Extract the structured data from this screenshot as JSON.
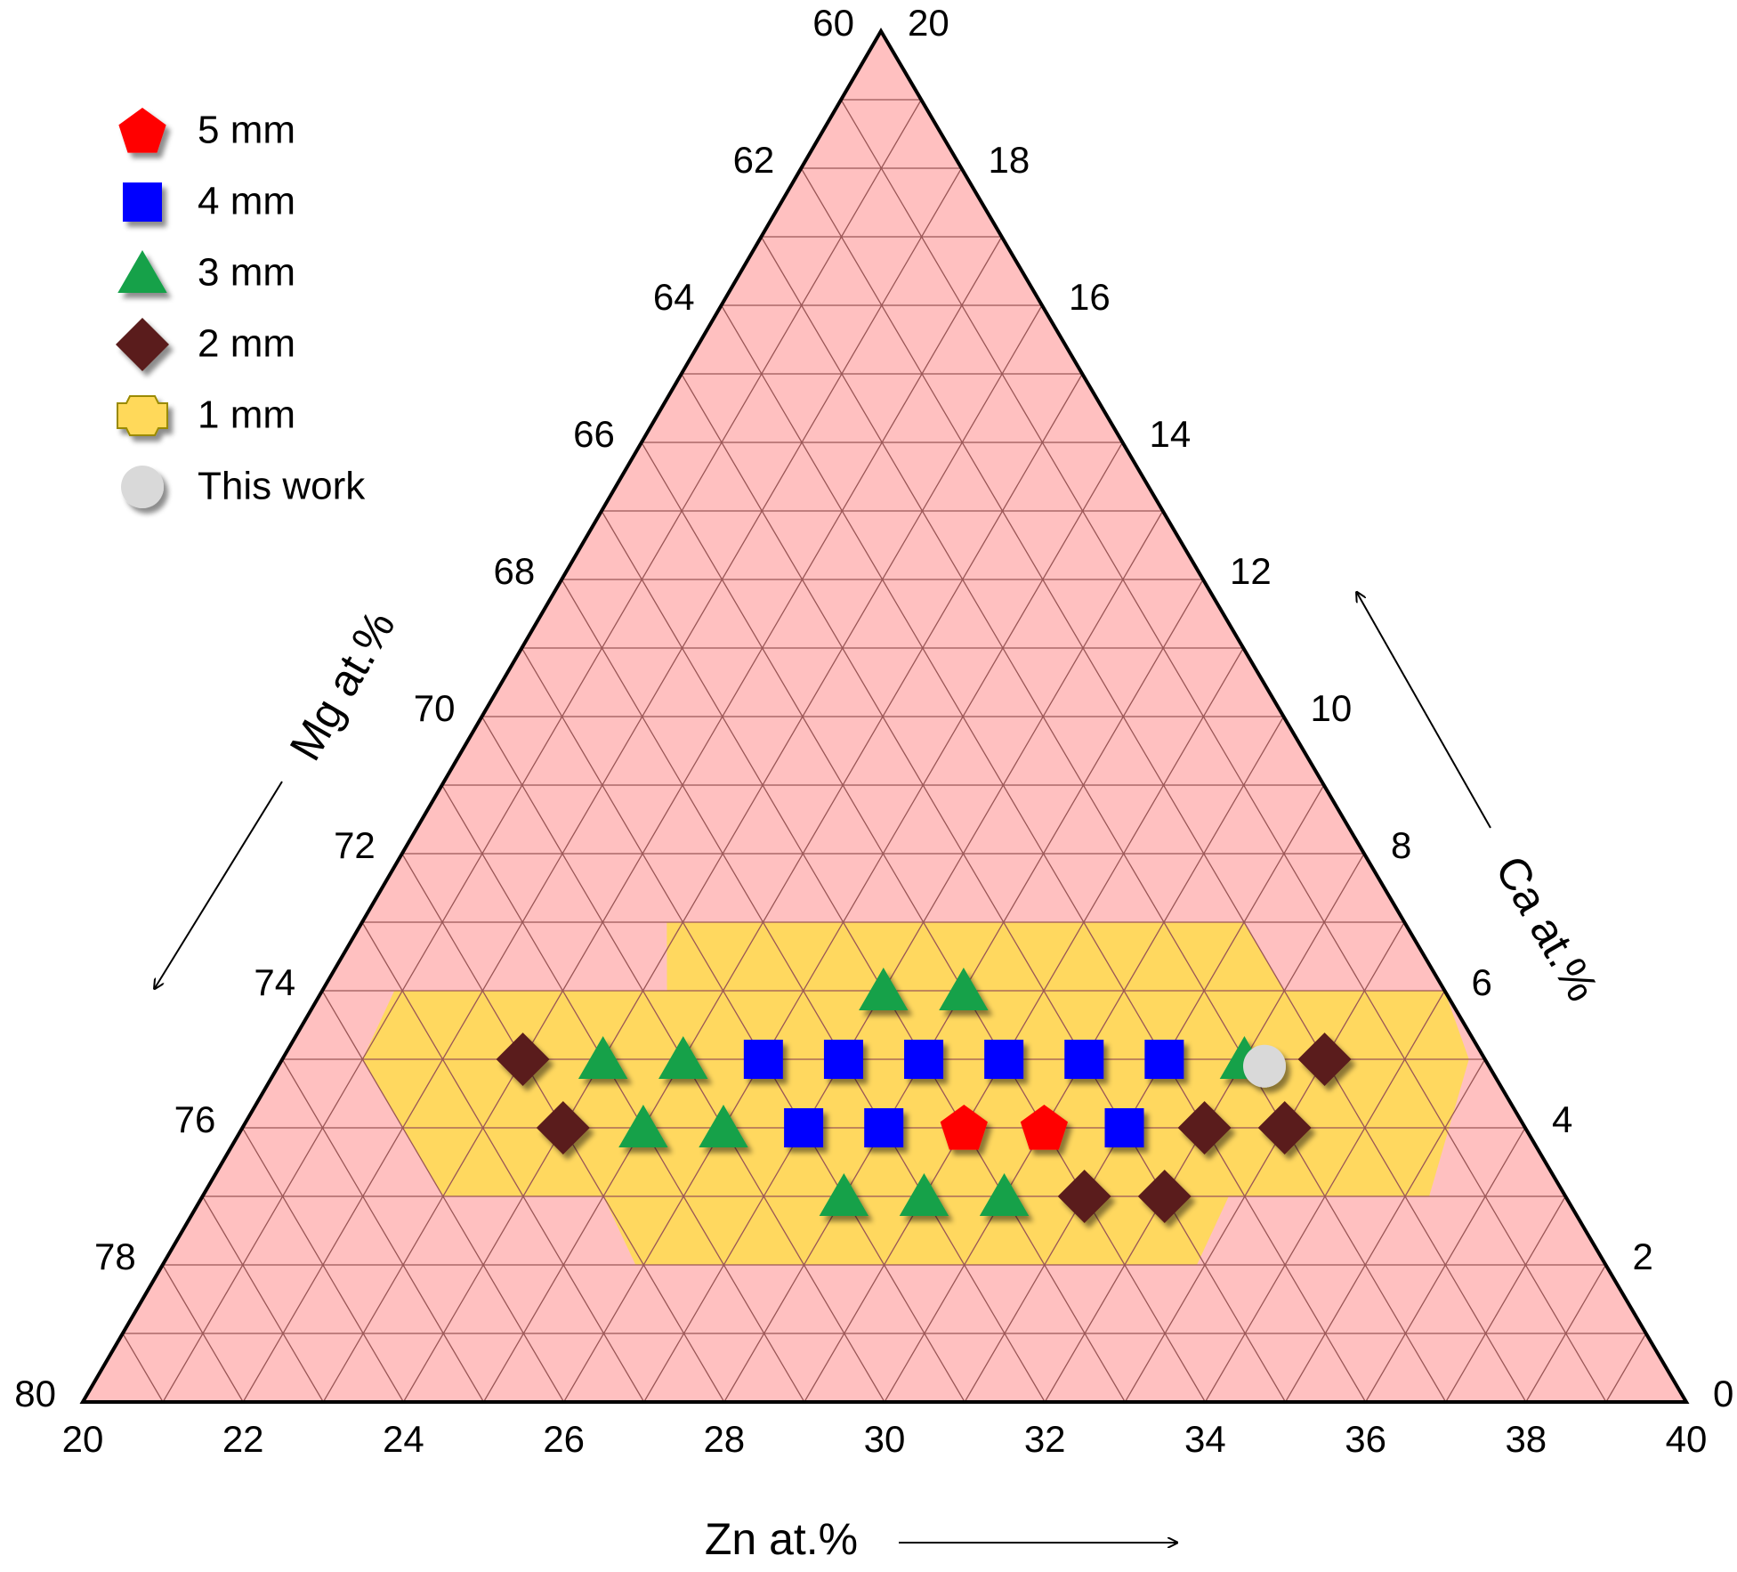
{
  "chart_data": {
    "type": "ternary",
    "axes": {
      "zn": {
        "label": "Zn at.%",
        "lim": [
          20,
          40
        ],
        "ticks": [
          20,
          22,
          24,
          26,
          28,
          30,
          32,
          34,
          36,
          38,
          40
        ],
        "grid": [
          20,
          21,
          22,
          23,
          24,
          25,
          26,
          27,
          28,
          29,
          30,
          31,
          32,
          33,
          34,
          35,
          36,
          37,
          38,
          39,
          40
        ]
      },
      "ca": {
        "label": "Ca at.%",
        "lim": [
          0,
          20
        ],
        "ticks": [
          0,
          2,
          4,
          6,
          8,
          10,
          12,
          14,
          16,
          18,
          20
        ],
        "grid": [
          0,
          1,
          2,
          3,
          4,
          5,
          6,
          7,
          8,
          9,
          10,
          11,
          12,
          13,
          14,
          15,
          16,
          17,
          18,
          19,
          20
        ]
      },
      "mg": {
        "label": "Mg at.%",
        "lim": [
          60,
          80
        ],
        "ticks": [
          60,
          62,
          64,
          66,
          68,
          70,
          72,
          74,
          76,
          78,
          80
        ],
        "grid": [
          60,
          61,
          62,
          63,
          64,
          65,
          66,
          67,
          68,
          69,
          70,
          71,
          72,
          73,
          74,
          75,
          76,
          77,
          78,
          79,
          80
        ]
      }
    },
    "background_color": "#ffc0c0",
    "grid_color": "#9a5656",
    "legend": "upper left",
    "series": [
      {
        "name": "5 mm",
        "marker": "pentagon",
        "color": "#ff0000",
        "zn": [
          29,
          30
        ],
        "ca": [
          4,
          4
        ]
      },
      {
        "name": "4 mm",
        "marker": "square",
        "color": "#0000ff",
        "zn": [
          26,
          27,
          28,
          29,
          30,
          31,
          27,
          28,
          31
        ],
        "ca": [
          5,
          5,
          5,
          5,
          5,
          5,
          4,
          4,
          4
        ]
      },
      {
        "name": "3 mm",
        "marker": "triangle",
        "color": "#12a14a",
        "zn": [
          27,
          28,
          24,
          25,
          32,
          25,
          26,
          28,
          29,
          30
        ],
        "ca": [
          6,
          6,
          5,
          5,
          5,
          4,
          4,
          3,
          3,
          3
        ]
      },
      {
        "name": "2 mm",
        "marker": "diamond",
        "color": "#5a1e1c",
        "zn": [
          23,
          33,
          24,
          32,
          33,
          31,
          32
        ],
        "ca": [
          5,
          5,
          4,
          4,
          4,
          3,
          3
        ]
      },
      {
        "name": "1 mm",
        "marker": "region",
        "color": "#ffd95a",
        "zn": [
          23.8,
          31,
          32,
          34,
          34.8,
          35.3,
          32.8,
          32.9,
          25.9,
          25,
          23,
          21,
          20.9,
          24.3
        ],
        "ca": [
          7,
          7,
          6,
          6,
          5,
          3,
          3,
          2,
          2,
          3,
          3,
          5,
          6,
          6
        ]
      },
      {
        "name": "This work",
        "marker": "circle",
        "color": "#d9d9d9",
        "zn": [
          32.3
        ],
        "ca": [
          4.9
        ]
      }
    ]
  }
}
